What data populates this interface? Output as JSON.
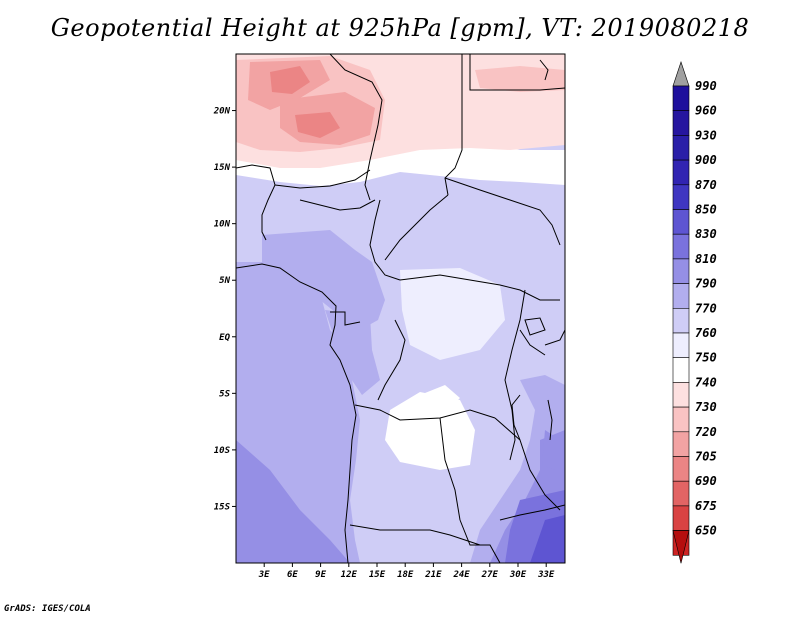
{
  "title": "Geopotential Height at 925hPa [gpm], VT: 2019080218",
  "credit": "GrADS: IGES/COLA",
  "map": {
    "lat_labels": [
      "20N",
      "15N",
      "10N",
      "5N",
      "EQ",
      "5S",
      "10S",
      "15S"
    ],
    "lat_values": [
      20,
      15,
      10,
      5,
      0,
      -5,
      -10,
      -15
    ],
    "lon_labels": [
      "3E",
      "6E",
      "9E",
      "12E",
      "15E",
      "18E",
      "21E",
      "24E",
      "27E",
      "30E",
      "33E"
    ],
    "lon_values": [
      3,
      6,
      9,
      12,
      15,
      18,
      21,
      24,
      27,
      30,
      33
    ],
    "lon_range": [
      0,
      35
    ],
    "lat_range": [
      -20,
      25
    ]
  },
  "legend": {
    "levels": [
      "990",
      "960",
      "930",
      "900",
      "870",
      "850",
      "830",
      "810",
      "790",
      "770",
      "760",
      "750",
      "740",
      "730",
      "720",
      "705",
      "690",
      "675",
      "650"
    ],
    "colors": [
      "#1e0f9c",
      "#26169f",
      "#2a1fa8",
      "#3124b2",
      "#3f36c1",
      "#5e55d2",
      "#7a72dd",
      "#958fe5",
      "#b2aeee",
      "#cfcdf6",
      "#eeeefe",
      "#ffffff",
      "#fde0e0",
      "#f9c3c3",
      "#f2a3a3",
      "#eb8585",
      "#e26464",
      "#d94343",
      "#cd2424",
      "#b50e0e"
    ]
  },
  "colors": {
    "low_height": "#b50e0e",
    "high_height": "#1e0f9c"
  }
}
